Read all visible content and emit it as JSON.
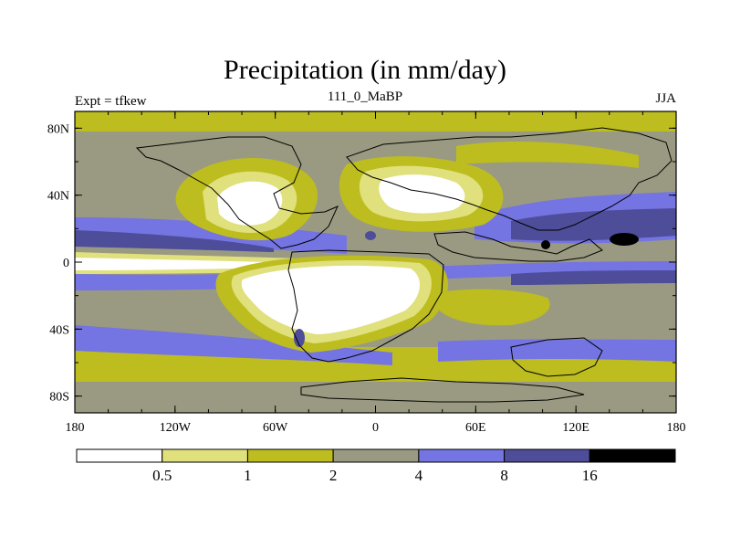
{
  "chart_data": {
    "type": "heatmap",
    "title": "Precipitation (in mm/day)",
    "left_string": "Expt = tfkew",
    "center_string": "111_0_MaBP",
    "right_string": "JJA",
    "x_ticks": [
      "180",
      "120W",
      "60W",
      "0",
      "60E",
      "120E",
      "180"
    ],
    "x_range": [
      -180,
      180
    ],
    "y_ticks": [
      "80N",
      "40N",
      "0",
      "40S",
      "80S"
    ],
    "y_range": [
      -90,
      90
    ],
    "colorbar": {
      "levels": [
        "0.5",
        "1",
        "2",
        "4",
        "8",
        "16"
      ],
      "colors": [
        "#ffffff",
        "#e0e07c",
        "#bdbd1f",
        "#9a9a82",
        "#7474e2",
        "#4d4d9a",
        "#000000"
      ]
    }
  }
}
